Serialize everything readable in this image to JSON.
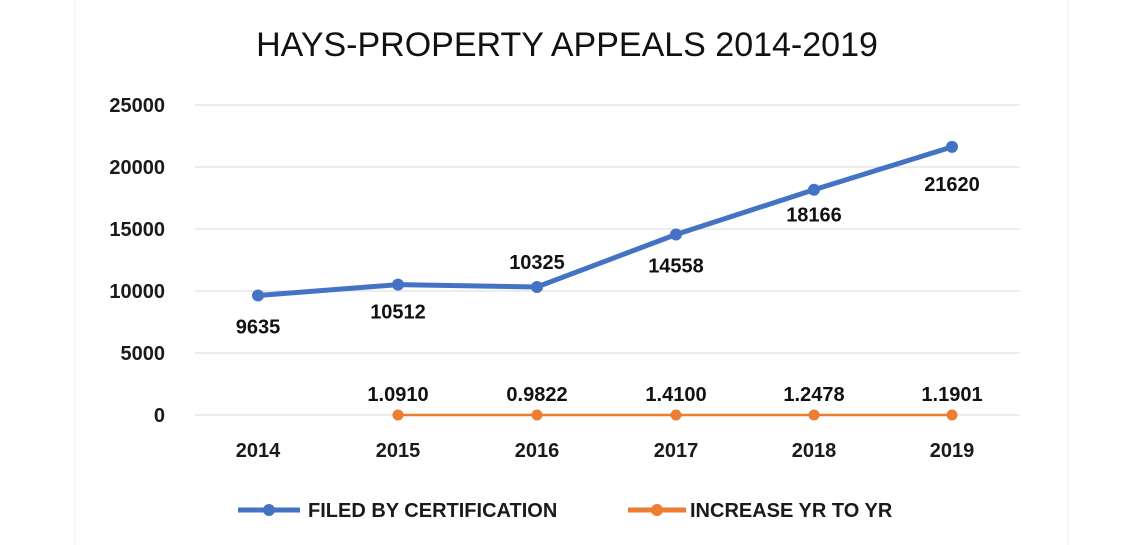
{
  "chart_data": {
    "type": "line",
    "title": "HAYS-PROPERTY APPEALS 2014-2019",
    "categories": [
      "2014",
      "2015",
      "2016",
      "2017",
      "2018",
      "2019"
    ],
    "y_ticks": [
      "0",
      "5000",
      "10000",
      "15000",
      "20000",
      "25000"
    ],
    "ylim": [
      0,
      25000
    ],
    "grid": true,
    "legend_position": "bottom",
    "series": [
      {
        "name": "FILED BY CERTIFICATION",
        "color": "#4472c4",
        "values": [
          9635,
          10512,
          10325,
          14558,
          18166,
          21620
        ],
        "labels": [
          "9635",
          "10512",
          "10325",
          "14558",
          "18166",
          "21620"
        ]
      },
      {
        "name": "INCREASE YR TO YR",
        "color": "#ed7d31",
        "values": [
          null,
          1.091,
          0.9822,
          1.41,
          1.2478,
          1.1901
        ],
        "labels": [
          "",
          "1.0910",
          "0.9822",
          "1.4100",
          "1.2478",
          "1.1901"
        ]
      }
    ]
  }
}
